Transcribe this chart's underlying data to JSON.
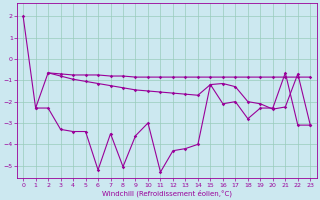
{
  "xlabel": "Windchill (Refroidissement éolien,°C)",
  "background_color": "#cce8f0",
  "grid_color": "#99ccbb",
  "line_color": "#990099",
  "ylim": [
    -5.6,
    2.6
  ],
  "xlim": [
    -0.5,
    23.5
  ],
  "yticks": [
    2,
    1,
    0,
    -1,
    -2,
    -3,
    -4,
    -5
  ],
  "xticks": [
    0,
    1,
    2,
    3,
    4,
    5,
    6,
    7,
    8,
    9,
    10,
    11,
    12,
    13,
    14,
    15,
    16,
    17,
    18,
    19,
    20,
    21,
    22,
    23
  ],
  "line1_x": [
    0,
    1,
    2,
    3,
    4,
    5,
    6,
    7,
    8,
    9,
    10,
    11,
    12,
    13,
    14,
    15,
    16,
    17,
    18,
    19,
    20,
    21,
    22,
    23
  ],
  "line1_y": [
    2.0,
    -2.3,
    -0.65,
    -0.7,
    -0.75,
    -0.75,
    -0.75,
    -0.8,
    -0.8,
    -0.85,
    -0.85,
    -0.85,
    -0.85,
    -0.85,
    -0.85,
    -0.85,
    -0.85,
    -0.85,
    -0.85,
    -0.85,
    -0.85,
    -0.85,
    -0.85,
    -0.85
  ],
  "line2_x": [
    2,
    3,
    4,
    5,
    6,
    7,
    8,
    9,
    10,
    11,
    12,
    13,
    14,
    15,
    16,
    17,
    18,
    19,
    20,
    21,
    22,
    23
  ],
  "line2_y": [
    -0.65,
    -0.8,
    -0.95,
    -1.05,
    -1.15,
    -1.25,
    -1.35,
    -1.45,
    -1.5,
    -1.55,
    -1.6,
    -1.65,
    -1.7,
    -1.2,
    -1.15,
    -1.3,
    -2.0,
    -2.1,
    -2.35,
    -2.25,
    -0.7,
    -3.1
  ],
  "line3_x": [
    1,
    2,
    3,
    4,
    5,
    6,
    7,
    8,
    9,
    10,
    11,
    12,
    13,
    14,
    15,
    16,
    17,
    18,
    19,
    20,
    21,
    22,
    23
  ],
  "line3_y": [
    -2.3,
    -2.3,
    -3.3,
    -3.4,
    -3.4,
    -5.2,
    -3.5,
    -5.05,
    -3.6,
    -3.0,
    -5.3,
    -4.3,
    -4.2,
    -4.0,
    -1.2,
    -2.1,
    -2.0,
    -2.8,
    -2.3,
    -2.3,
    -0.65,
    -3.1,
    -3.1
  ]
}
